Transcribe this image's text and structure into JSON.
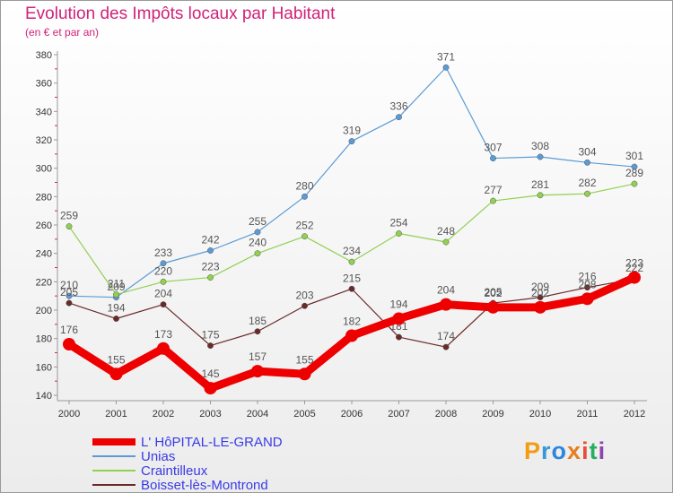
{
  "title": "Evolution des Impôts locaux par Habitant",
  "subtitle": "(en € et par an)",
  "logo": {
    "letters": [
      "P",
      "r",
      "o",
      "x",
      "i",
      "t",
      "i"
    ],
    "colors": [
      "#f39c12",
      "#3498db",
      "#2e86de",
      "#e67e22",
      "#e74c3c",
      "#27ae60",
      "#8e44ad"
    ]
  },
  "chart_data": {
    "type": "line",
    "title": "Evolution des Impôts locaux par Habitant",
    "subtitle": "(en € et par an)",
    "xlabel": "",
    "ylabel": "",
    "x": [
      "2000",
      "2001",
      "2002",
      "2003",
      "2004",
      "2005",
      "2006",
      "2007",
      "2008",
      "2009",
      "2010",
      "2011",
      "2012"
    ],
    "ylim": [
      140,
      380
    ],
    "yticks": [
      140,
      160,
      180,
      200,
      220,
      240,
      260,
      280,
      300,
      320,
      340,
      360,
      380
    ],
    "grid": false,
    "legend_position": "bottom-left",
    "series": [
      {
        "name": "L' HôPITAL-LE-GRAND",
        "color": "#ee0000",
        "values": [
          176,
          155,
          173,
          145,
          157,
          155,
          182,
          194,
          204,
          202,
          202,
          208,
          223
        ]
      },
      {
        "name": "Unias",
        "color": "#5b9bd5",
        "values": [
          210,
          209,
          233,
          242,
          255,
          280,
          319,
          336,
          371,
          307,
          308,
          304,
          301
        ]
      },
      {
        "name": "Craintilleux",
        "color": "#92d050",
        "values": [
          259,
          211,
          220,
          223,
          240,
          252,
          234,
          254,
          248,
          277,
          281,
          282,
          289
        ]
      },
      {
        "name": "Boisset-lès-Montrond",
        "color": "#6b2a2a",
        "values": [
          205,
          194,
          204,
          175,
          185,
          203,
          215,
          181,
          174,
          205,
          209,
          216,
          222
        ]
      }
    ]
  }
}
